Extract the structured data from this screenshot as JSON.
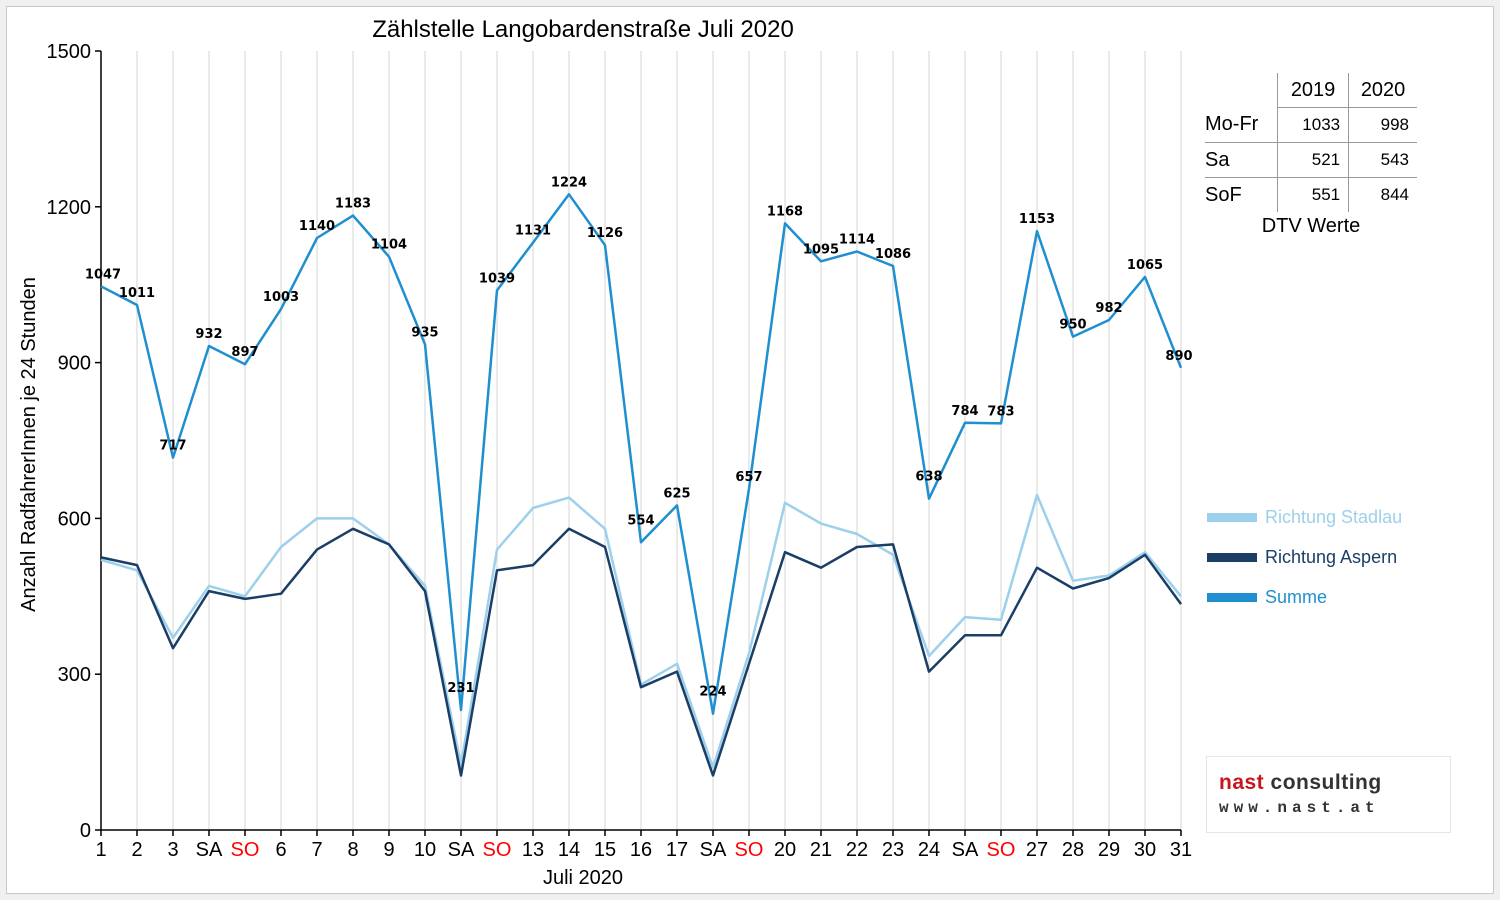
{
  "chart_data": {
    "type": "line",
    "title": "Zählstelle Langobardenstraße Juli 2020",
    "xlabel": "Juli 2020",
    "ylabel": "Anzahl RadfahrerInnen je 24 Stunden",
    "ylim": [
      0,
      1500
    ],
    "yticks": [
      0,
      300,
      600,
      900,
      1200,
      1500
    ],
    "grid": "vertical",
    "legend_position": "right",
    "categories": [
      "1",
      "2",
      "3",
      "SA",
      "SO",
      "6",
      "7",
      "8",
      "9",
      "10",
      "SA",
      "SO",
      "13",
      "14",
      "15",
      "16",
      "17",
      "SA",
      "SO",
      "20",
      "21",
      "22",
      "23",
      "24",
      "SA",
      "SO",
      "27",
      "28",
      "29",
      "30",
      "31"
    ],
    "weekend_label_color": "#ff0000",
    "series": [
      {
        "name": "Richtung Stadlau",
        "color": "#9dd0ec",
        "values": [
          520,
          500,
          370,
          470,
          450,
          545,
          600,
          600,
          550,
          470,
          125,
          540,
          620,
          640,
          580,
          280,
          320,
          120,
          340,
          630,
          590,
          570,
          530,
          335,
          410,
          405,
          645,
          480,
          490,
          535,
          450
        ]
      },
      {
        "name": "Richtung Aspern",
        "color": "#1a3e66",
        "values": [
          525,
          510,
          350,
          460,
          445,
          455,
          540,
          580,
          550,
          460,
          105,
          500,
          510,
          580,
          545,
          275,
          305,
          105,
          320,
          535,
          505,
          545,
          550,
          305,
          375,
          375,
          505,
          465,
          485,
          530,
          435
        ]
      },
      {
        "name": "Summe",
        "color": "#1f8fd0",
        "values": [
          1047,
          1011,
          717,
          932,
          897,
          1003,
          1140,
          1183,
          1104,
          935,
          231,
          1039,
          1131,
          1224,
          1126,
          554,
          625,
          224,
          657,
          1168,
          1095,
          1114,
          1086,
          638,
          784,
          783,
          1153,
          950,
          982,
          1065,
          890
        ]
      }
    ]
  },
  "dtv_table": {
    "columns": [
      "2019",
      "2020"
    ],
    "rows": [
      {
        "label": "Mo-Fr",
        "v2019": "1033",
        "v2020": "998"
      },
      {
        "label": "Sa",
        "v2019": "521",
        "v2020": "543"
      },
      {
        "label": "SoF",
        "v2019": "551",
        "v2020": "844"
      }
    ],
    "caption": "DTV Werte"
  },
  "legend": [
    {
      "label": "Richtung Stadlau",
      "color": "#9dd0ec"
    },
    {
      "label": "Richtung Aspern",
      "color": "#1a3e66"
    },
    {
      "label": "Summe",
      "color": "#1f8fd0"
    }
  ],
  "logo": {
    "brand_part1": "nast",
    "brand_part2": "consulting",
    "url": "www.nast.at",
    "brand_color": "#c8161d",
    "text_color": "#333333"
  }
}
